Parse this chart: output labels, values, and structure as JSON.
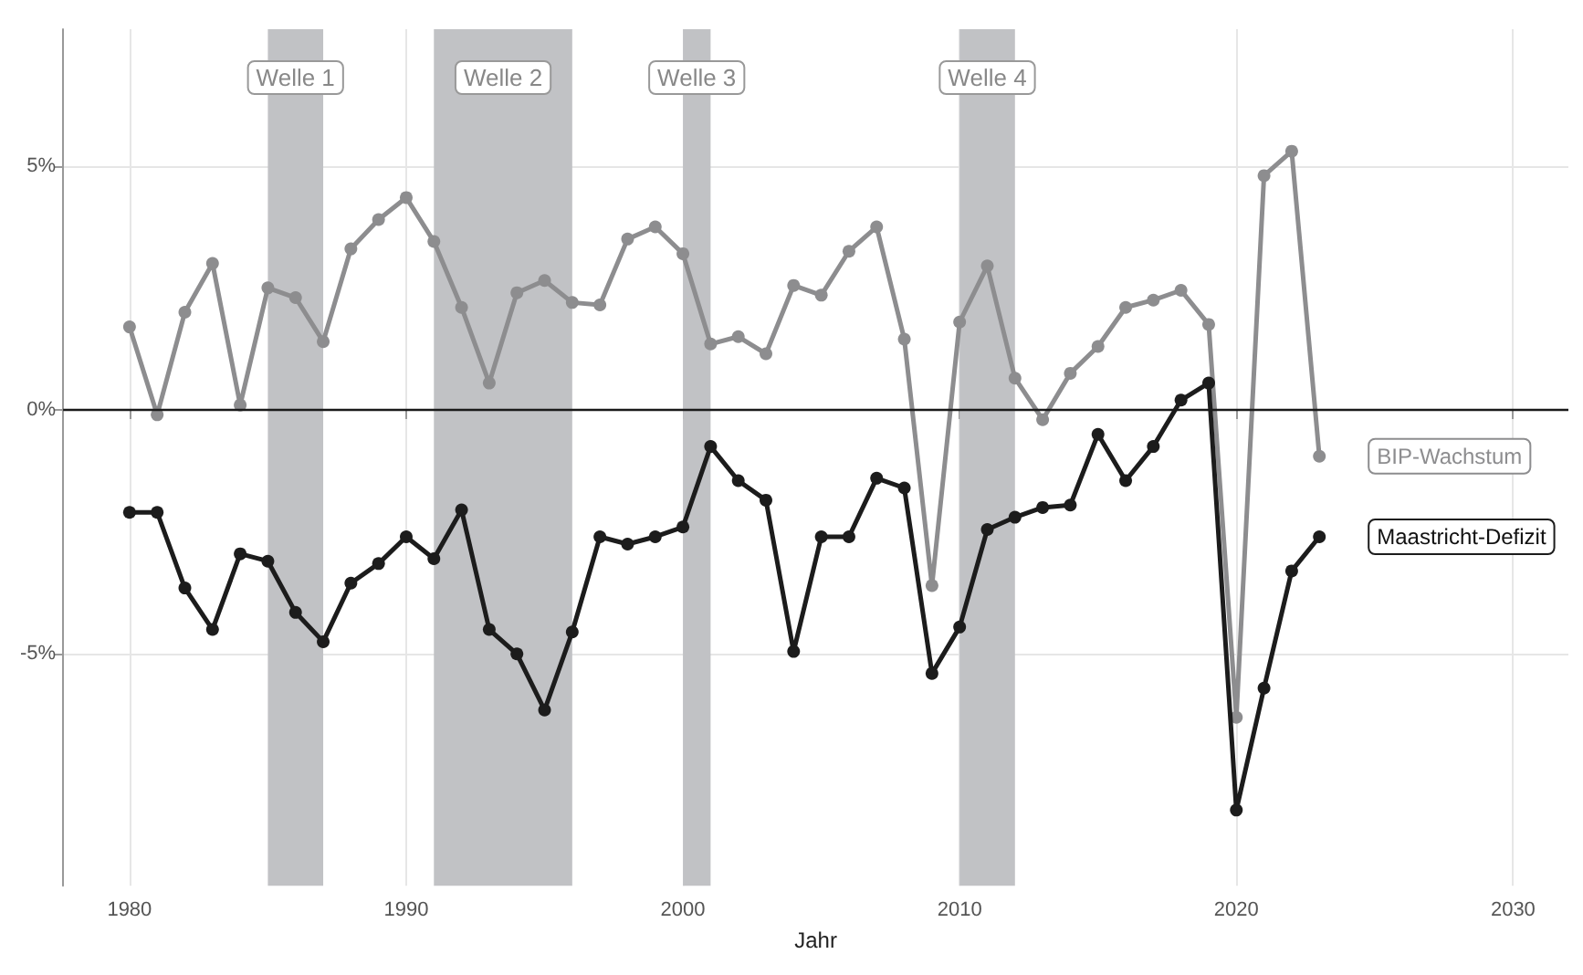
{
  "chart_data": {
    "type": "line",
    "xlabel": "Jahr",
    "x": [
      1980,
      1981,
      1982,
      1983,
      1984,
      1985,
      1986,
      1987,
      1988,
      1989,
      1990,
      1991,
      1992,
      1993,
      1994,
      1995,
      1996,
      1997,
      1998,
      1999,
      2000,
      2001,
      2002,
      2003,
      2004,
      2005,
      2006,
      2007,
      2008,
      2009,
      2010,
      2011,
      2012,
      2013,
      2014,
      2015,
      2016,
      2017,
      2018,
      2019,
      2020,
      2021,
      2022,
      2023
    ],
    "series": [
      {
        "name": "BIP-Wachstum",
        "color": "#8d8d8f",
        "values": [
          1.7,
          -0.1,
          2.0,
          3.0,
          0.1,
          2.5,
          2.3,
          1.4,
          3.3,
          3.9,
          4.35,
          3.45,
          2.1,
          0.55,
          2.4,
          2.65,
          2.2,
          2.15,
          3.5,
          3.75,
          3.2,
          1.35,
          1.5,
          1.15,
          2.55,
          2.35,
          3.25,
          3.75,
          1.45,
          -3.6,
          1.8,
          2.95,
          0.65,
          -0.2,
          0.75,
          1.3,
          2.1,
          2.25,
          2.45,
          1.75,
          -6.3,
          4.8,
          5.3,
          -0.95
        ]
      },
      {
        "name": "Maastricht-Defizit",
        "color": "#1c1c1c",
        "values": [
          -2.1,
          -2.1,
          -3.65,
          -4.5,
          -2.95,
          -3.1,
          -4.15,
          -4.75,
          -3.55,
          -3.15,
          -2.6,
          -3.05,
          -2.05,
          -4.5,
          -5.0,
          -6.15,
          -4.55,
          -2.6,
          -2.75,
          -2.6,
          -2.4,
          -0.75,
          -1.45,
          -1.85,
          -4.95,
          -2.6,
          -2.6,
          -1.4,
          -1.6,
          -5.4,
          -4.45,
          -2.45,
          -2.2,
          -2.0,
          -1.95,
          -0.5,
          -1.45,
          -0.75,
          0.2,
          0.55,
          -8.2,
          -5.7,
          -3.3,
          -2.6
        ]
      }
    ],
    "xlim": [
      1977.6,
      2032
    ],
    "xticks": [
      1980,
      1990,
      2000,
      2010,
      2020,
      2030
    ],
    "ylim": [
      -9.75,
      7.8
    ],
    "yticks": [
      {
        "value": -5,
        "label": "-5%"
      },
      {
        "value": 0,
        "label": "0%"
      },
      {
        "value": 5,
        "label": "5%"
      }
    ],
    "ref_lines": [
      {
        "axis": "y",
        "value": 0,
        "color": "#1a1a1a"
      }
    ],
    "bands": [
      {
        "axis": "x",
        "from": 1985,
        "to": 1987,
        "label": "Welle 1",
        "color": "#c1c2c5"
      },
      {
        "axis": "x",
        "from": 1991,
        "to": 1996,
        "label": "Welle 2",
        "color": "#c1c2c5"
      },
      {
        "axis": "x",
        "from": 2000,
        "to": 2001,
        "label": "Welle 3",
        "color": "#c1c2c5"
      },
      {
        "axis": "x",
        "from": 2010,
        "to": 2012,
        "label": "Welle 4",
        "color": "#c1c2c5"
      }
    ],
    "grid": true,
    "legend": "right",
    "marker": "circle",
    "line_style": "solid"
  }
}
